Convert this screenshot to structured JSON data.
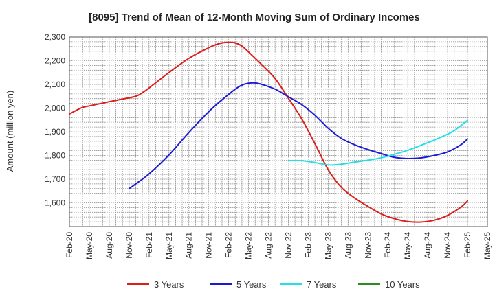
{
  "chart_data": {
    "type": "line",
    "title": "[8095]  Trend of Mean of 12-Month Moving Sum of Ordinary Incomes",
    "xlabel": "",
    "ylabel": "Amount (million yen)",
    "ylim": [
      1500,
      2300
    ],
    "y_ticks": [
      1600,
      1700,
      1800,
      1900,
      2000,
      2100,
      2200,
      2300
    ],
    "y_tick_labels": [
      "1,600",
      "1,700",
      "1,800",
      "1,900",
      "2,000",
      "2,100",
      "2,200",
      "2,300"
    ],
    "x_range": [
      0,
      63
    ],
    "x_ticks": [
      0,
      3,
      6,
      9,
      12,
      15,
      18,
      21,
      24,
      27,
      30,
      33,
      36,
      39,
      42,
      45,
      48,
      51,
      54,
      57,
      60,
      63
    ],
    "x_tick_labels": [
      "Feb-20",
      "May-20",
      "Aug-20",
      "Nov-20",
      "Feb-21",
      "May-21",
      "Aug-21",
      "Nov-21",
      "Feb-22",
      "May-22",
      "Aug-22",
      "Nov-22",
      "Feb-23",
      "May-23",
      "Aug-23",
      "Nov-23",
      "Feb-24",
      "May-24",
      "Aug-24",
      "Nov-24",
      "Feb-25",
      "May-25"
    ],
    "grid": true,
    "legend_position": "bottom",
    "series": [
      {
        "name": "3 Years",
        "color": "#dd1c1c",
        "points": [
          [
            0,
            1975
          ],
          [
            1,
            1990
          ],
          [
            2,
            2003
          ],
          [
            4,
            2015
          ],
          [
            6,
            2027
          ],
          [
            8,
            2038
          ],
          [
            10,
            2050
          ],
          [
            11,
            2065
          ],
          [
            12,
            2085
          ],
          [
            15,
            2150
          ],
          [
            18,
            2210
          ],
          [
            21,
            2255
          ],
          [
            22,
            2267
          ],
          [
            23,
            2275
          ],
          [
            24,
            2278
          ],
          [
            25,
            2275
          ],
          [
            26,
            2262
          ],
          [
            27,
            2237
          ],
          [
            29,
            2183
          ],
          [
            31,
            2125
          ],
          [
            33,
            2042
          ],
          [
            35,
            1955
          ],
          [
            37,
            1850
          ],
          [
            39,
            1740
          ],
          [
            41,
            1665
          ],
          [
            43,
            1620
          ],
          [
            45,
            1585
          ],
          [
            47,
            1553
          ],
          [
            49,
            1533
          ],
          [
            51,
            1521
          ],
          [
            53,
            1519
          ],
          [
            55,
            1527
          ],
          [
            57,
            1547
          ],
          [
            59,
            1582
          ],
          [
            60,
            1608
          ]
        ]
      },
      {
        "name": "5 Years",
        "color": "#1a1ad6",
        "points": [
          [
            9,
            1660
          ],
          [
            10,
            1680
          ],
          [
            12,
            1722
          ],
          [
            15,
            1802
          ],
          [
            18,
            1897
          ],
          [
            21,
            1985
          ],
          [
            23,
            2035
          ],
          [
            25,
            2080
          ],
          [
            26,
            2097
          ],
          [
            27,
            2105
          ],
          [
            28,
            2106
          ],
          [
            29,
            2100
          ],
          [
            31,
            2080
          ],
          [
            33,
            2048
          ],
          [
            35,
            2015
          ],
          [
            37,
            1970
          ],
          [
            39,
            1915
          ],
          [
            41,
            1872
          ],
          [
            43,
            1845
          ],
          [
            45,
            1825
          ],
          [
            47,
            1808
          ],
          [
            49,
            1792
          ],
          [
            51,
            1787
          ],
          [
            53,
            1790
          ],
          [
            55,
            1800
          ],
          [
            57,
            1815
          ],
          [
            59,
            1845
          ],
          [
            60,
            1870
          ]
        ]
      },
      {
        "name": "7 Years",
        "color": "#22e0e8",
        "points": [
          [
            33,
            1778
          ],
          [
            35,
            1778
          ],
          [
            37,
            1770
          ],
          [
            39,
            1760
          ],
          [
            41,
            1763
          ],
          [
            43,
            1772
          ],
          [
            45,
            1780
          ],
          [
            47,
            1790
          ],
          [
            49,
            1805
          ],
          [
            51,
            1822
          ],
          [
            53,
            1843
          ],
          [
            55,
            1865
          ],
          [
            57,
            1890
          ],
          [
            58,
            1905
          ],
          [
            60,
            1948
          ]
        ]
      },
      {
        "name": "10 Years",
        "color": "#2e8b22",
        "points": []
      }
    ]
  }
}
